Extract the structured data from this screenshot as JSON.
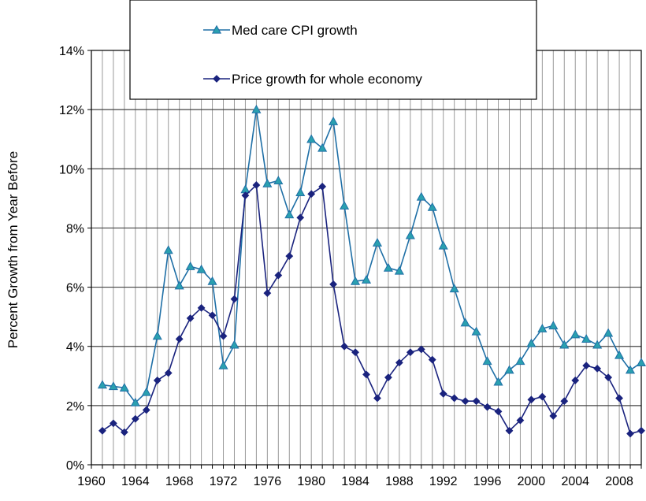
{
  "chart_data": {
    "type": "line",
    "ylabel": "Percent Growth from Year Before",
    "xlabel": "",
    "xlim": [
      1960,
      2010
    ],
    "ylim": [
      0,
      14
    ],
    "y_ticks": [
      "0%",
      "2%",
      "4%",
      "6%",
      "8%",
      "10%",
      "12%",
      "14%"
    ],
    "x_ticks": [
      "1960",
      "1964",
      "1968",
      "1972",
      "1976",
      "1980",
      "1984",
      "1988",
      "1992",
      "1996",
      "2000",
      "2004",
      "2008"
    ],
    "x_tick_values": [
      1960,
      1964,
      1968,
      1972,
      1976,
      1980,
      1984,
      1988,
      1992,
      1996,
      2000,
      2004,
      2008
    ],
    "grid": "vertical every year, horizontal every 2%",
    "legend_position": "top-center",
    "x": [
      1961,
      1962,
      1963,
      1964,
      1965,
      1966,
      1967,
      1968,
      1969,
      1970,
      1971,
      1972,
      1973,
      1974,
      1975,
      1976,
      1977,
      1978,
      1979,
      1980,
      1981,
      1982,
      1983,
      1984,
      1985,
      1986,
      1987,
      1988,
      1989,
      1990,
      1991,
      1992,
      1993,
      1994,
      1995,
      1996,
      1997,
      1998,
      1999,
      2000,
      2001,
      2002,
      2003,
      2004,
      2005,
      2006,
      2007,
      2008,
      2009,
      2010
    ],
    "series": [
      {
        "name": "Med care CPI growth",
        "marker": "triangle",
        "color": "#1f6fa6",
        "values": [
          2.7,
          2.65,
          2.6,
          2.1,
          2.45,
          4.35,
          7.25,
          6.05,
          6.7,
          6.6,
          6.2,
          3.35,
          4.05,
          9.3,
          12.0,
          9.5,
          9.6,
          8.45,
          9.2,
          11.0,
          10.7,
          11.6,
          8.75,
          6.2,
          6.25,
          7.5,
          6.65,
          6.55,
          7.75,
          9.05,
          8.7,
          7.4,
          5.95,
          4.8,
          4.5,
          3.5,
          2.8,
          3.2,
          3.5,
          4.1,
          4.6,
          4.7,
          4.05,
          4.4,
          4.25,
          4.05,
          4.45,
          3.7,
          3.2,
          3.45
        ]
      },
      {
        "name": "Price growth for whole economy",
        "marker": "diamond",
        "color": "#1a237e",
        "values": [
          1.15,
          1.4,
          1.1,
          1.55,
          1.85,
          2.85,
          3.1,
          4.25,
          4.95,
          5.3,
          5.05,
          4.35,
          5.6,
          9.1,
          9.45,
          5.8,
          6.4,
          7.05,
          8.35,
          9.15,
          9.4,
          6.1,
          4.0,
          3.8,
          3.05,
          2.25,
          2.95,
          3.45,
          3.8,
          3.9,
          3.55,
          2.4,
          2.25,
          2.15,
          2.15,
          1.95,
          1.8,
          1.15,
          1.5,
          2.2,
          2.3,
          1.65,
          2.15,
          2.85,
          3.35,
          3.25,
          2.95,
          2.25,
          1.05,
          1.15
        ]
      }
    ]
  }
}
